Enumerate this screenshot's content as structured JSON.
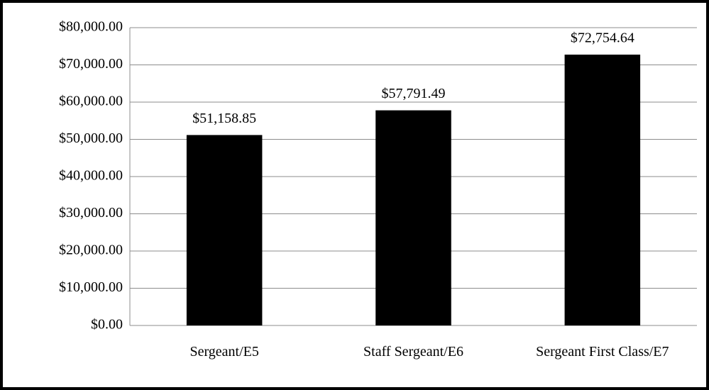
{
  "chart_data": {
    "type": "bar",
    "categories": [
      "Sergeant/E5",
      "Staff Sergeant/E6",
      "Sergeant First Class/E7"
    ],
    "values": [
      51158.85,
      57791.49,
      72754.64
    ],
    "value_labels": [
      "$51,158.85",
      "$57,791.49",
      "$72,754.64"
    ],
    "color": "#000000",
    "ylim": [
      0,
      80000
    ],
    "yticks": [
      {
        "value": 0,
        "label": "$0.00"
      },
      {
        "value": 10000,
        "label": "$10,000.00"
      },
      {
        "value": 20000,
        "label": "$20,000.00"
      },
      {
        "value": 30000,
        "label": "$30,000.00"
      },
      {
        "value": 40000,
        "label": "$40,000.00"
      },
      {
        "value": 50000,
        "label": "$50,000.00"
      },
      {
        "value": 60000,
        "label": "$60,000.00"
      },
      {
        "value": 70000,
        "label": "$70,000.00"
      },
      {
        "value": 80000,
        "label": "$80,000.00"
      }
    ],
    "grid": true
  }
}
